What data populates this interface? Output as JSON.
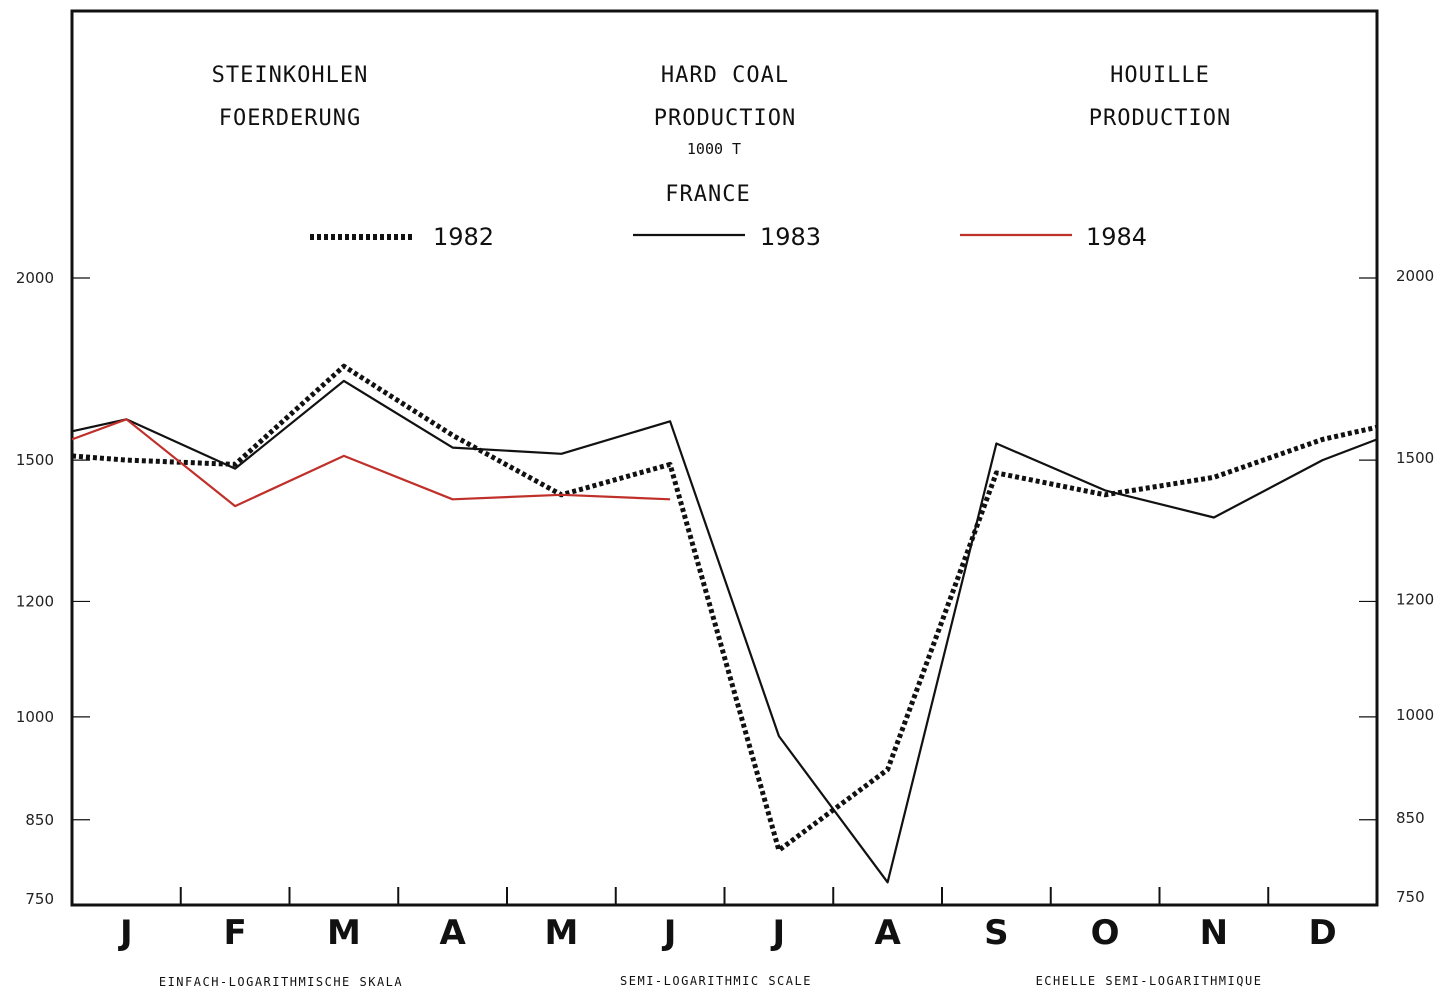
{
  "title": {
    "german_line1": "STEINKOHLEN",
    "german_line2": "FOERDERUNG",
    "english_line1": "HARD COAL",
    "english_line2": "PRODUCTION",
    "unit": "1000 T",
    "country": "FRANCE",
    "french_line1": "HOUILLE",
    "french_line2": "PRODUCTION"
  },
  "scale_notes": {
    "german": "EINFACH-LOGARITHMISCHE SKALA",
    "english": "SEMI-LOGARITHMIC SCALE",
    "french": "ECHELLE SEMI-LOGARITHMIQUE"
  },
  "colors": {
    "series_1982": "#111111",
    "series_1983": "#111111",
    "series_1984": "#c0302a",
    "frame": "#111111"
  },
  "chart_data": {
    "type": "line",
    "y_scale": "log",
    "ylim": [
      750,
      2050
    ],
    "yticks": [
      750,
      850,
      1000,
      1200,
      1500,
      2000
    ],
    "categories": [
      "J",
      "F",
      "M",
      "A",
      "M",
      "J",
      "J",
      "A",
      "S",
      "O",
      "N",
      "D"
    ],
    "legend_placement": "top",
    "grid": false,
    "series": [
      {
        "name": "1982",
        "style": "dotted",
        "x": [
          0,
          0.5,
          1.5,
          2.5,
          3.5,
          4.5,
          5.5,
          6.5,
          7.5,
          8.5,
          9.5,
          10.5,
          11.5,
          12
        ],
        "values": [
          1510,
          1500,
          1490,
          1740,
          1560,
          1420,
          1490,
          810,
          920,
          1470,
          1420,
          1460,
          1550,
          1580
        ]
      },
      {
        "name": "1983",
        "style": "solid",
        "x": [
          0,
          0.5,
          1.5,
          2.5,
          3.5,
          4.5,
          5.5,
          6.5,
          7.5,
          8.5,
          9.5,
          10.5,
          11.5,
          12
        ],
        "values": [
          1570,
          1600,
          1480,
          1700,
          1530,
          1515,
          1595,
          970,
          770,
          1540,
          1430,
          1370,
          1500,
          1550
        ]
      },
      {
        "name": "1984",
        "style": "solid",
        "x": [
          0,
          0.5,
          1.5,
          2.5,
          3.5,
          4.5,
          5.5
        ],
        "values": [
          1550,
          1600,
          1395,
          1510,
          1410,
          1420,
          1410
        ]
      }
    ]
  }
}
